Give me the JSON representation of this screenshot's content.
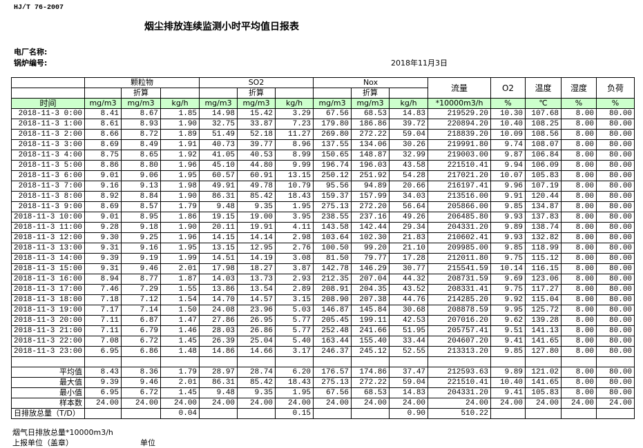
{
  "header": {
    "standard": "HJ/T  76-2007",
    "title": "烟尘排放连续监测小时平均值日报表",
    "plant_label": "电厂名称:",
    "boiler_label": "锅炉编号:",
    "date": "2018年11月3日"
  },
  "colors": {
    "header_green": "#ccffcc"
  },
  "table": {
    "groups": {
      "particulate": "颗粒物",
      "so2": "SO2",
      "nox": "Nox",
      "flow": "流量",
      "o2": "O2",
      "temp": "温度",
      "humidity": "湿度",
      "load": "负荷"
    },
    "converted": "折算",
    "time_label": "时间",
    "units": [
      "mg/m3",
      "mg/m3",
      "kg/h",
      "mg/m3",
      "mg/m3",
      "kg/h",
      "mg/m3",
      "mg/m3",
      "kg/h",
      "*10000m3/h",
      "%",
      "℃",
      "%",
      "%"
    ],
    "rows": [
      [
        "2018-11-3 0:00",
        "8.41",
        "8.67",
        "1.85",
        "14.98",
        "15.42",
        "3.29",
        "67.56",
        "68.53",
        "14.83",
        "219529.20",
        "10.30",
        "107.68",
        "8.00",
        "80.00"
      ],
      [
        "2018-11-3 1:00",
        "8.61",
        "8.93",
        "1.90",
        "32.75",
        "33.87",
        "7.23",
        "179.80",
        "186.86",
        "39.72",
        "220894.20",
        "10.40",
        "108.25",
        "8.00",
        "80.00"
      ],
      [
        "2018-11-3 2:00",
        "8.66",
        "8.72",
        "1.89",
        "51.49",
        "52.18",
        "11.27",
        "269.80",
        "272.22",
        "59.04",
        "218839.20",
        "10.09",
        "108.56",
        "8.00",
        "80.00"
      ],
      [
        "2018-11-3 3:00",
        "8.69",
        "8.49",
        "1.91",
        "40.73",
        "39.77",
        "8.96",
        "137.55",
        "134.06",
        "30.26",
        "219991.80",
        "9.74",
        "108.07",
        "8.00",
        "80.00"
      ],
      [
        "2018-11-3 4:00",
        "8.75",
        "8.65",
        "1.92",
        "41.05",
        "40.53",
        "8.99",
        "150.65",
        "148.87",
        "32.99",
        "219003.00",
        "9.87",
        "106.84",
        "8.00",
        "80.00"
      ],
      [
        "2018-11-3 5:00",
        "8.86",
        "8.80",
        "1.96",
        "45.10",
        "44.80",
        "9.99",
        "196.74",
        "196.03",
        "43.58",
        "221510.41",
        "9.94",
        "106.09",
        "8.00",
        "80.00"
      ],
      [
        "2018-11-3 6:00",
        "9.01",
        "9.06",
        "1.95",
        "60.57",
        "60.91",
        "13.15",
        "250.12",
        "251.92",
        "54.28",
        "217021.20",
        "10.07",
        "105.83",
        "8.00",
        "80.00"
      ],
      [
        "2018-11-3 7:00",
        "9.16",
        "9.13",
        "1.98",
        "49.91",
        "49.78",
        "10.79",
        "95.56",
        "94.89",
        "20.66",
        "216197.41",
        "9.96",
        "107.19",
        "8.00",
        "80.00"
      ],
      [
        "2018-11-3 8:00",
        "8.92",
        "8.84",
        "1.90",
        "86.31",
        "85.42",
        "18.43",
        "159.37",
        "157.99",
        "34.03",
        "213516.00",
        "9.91",
        "120.44",
        "8.00",
        "80.00"
      ],
      [
        "2018-11-3 9:00",
        "8.69",
        "8.57",
        "1.79",
        "9.48",
        "9.35",
        "1.95",
        "275.13",
        "272.20",
        "56.64",
        "205866.00",
        "9.85",
        "134.87",
        "8.00",
        "80.00"
      ],
      [
        "2018-11-3 10:00",
        "9.01",
        "8.95",
        "1.86",
        "19.15",
        "19.00",
        "3.95",
        "238.55",
        "237.16",
        "49.26",
        "206485.80",
        "9.93",
        "137.83",
        "8.00",
        "80.00"
      ],
      [
        "2018-11-3 11:00",
        "9.28",
        "9.18",
        "1.90",
        "20.11",
        "19.91",
        "4.11",
        "143.58",
        "142.44",
        "29.34",
        "204331.20",
        "9.89",
        "138.74",
        "8.00",
        "80.00"
      ],
      [
        "2018-11-3 12:00",
        "9.30",
        "9.25",
        "1.96",
        "14.15",
        "14.14",
        "2.98",
        "103.64",
        "102.30",
        "21.83",
        "210602.41",
        "9.93",
        "132.82",
        "8.00",
        "80.00"
      ],
      [
        "2018-11-3 13:00",
        "9.31",
        "9.16",
        "1.95",
        "13.15",
        "12.95",
        "2.76",
        "100.50",
        "99.20",
        "21.10",
        "209985.00",
        "9.85",
        "118.99",
        "8.00",
        "80.00"
      ],
      [
        "2018-11-3 14:00",
        "9.39",
        "9.19",
        "1.99",
        "14.51",
        "14.19",
        "3.08",
        "81.50",
        "79.77",
        "17.28",
        "212011.80",
        "9.75",
        "115.12",
        "8.00",
        "80.00"
      ],
      [
        "2018-11-3 15:00",
        "9.31",
        "9.46",
        "2.01",
        "17.98",
        "18.27",
        "3.87",
        "142.78",
        "146.29",
        "30.77",
        "215541.59",
        "10.14",
        "116.15",
        "8.00",
        "80.00"
      ],
      [
        "2018-11-3 16:00",
        "8.94",
        "8.77",
        "1.87",
        "14.03",
        "13.73",
        "2.93",
        "212.35",
        "207.04",
        "44.32",
        "208731.59",
        "9.69",
        "123.06",
        "8.00",
        "80.00"
      ],
      [
        "2018-11-3 17:00",
        "7.46",
        "7.29",
        "1.55",
        "13.86",
        "13.54",
        "2.89",
        "208.91",
        "204.35",
        "43.52",
        "208331.41",
        "9.75",
        "117.27",
        "8.00",
        "80.00"
      ],
      [
        "2018-11-3 18:00",
        "7.18",
        "7.12",
        "1.54",
        "14.70",
        "14.57",
        "3.15",
        "208.90",
        "207.38",
        "44.76",
        "214285.20",
        "9.92",
        "115.04",
        "8.00",
        "80.00"
      ],
      [
        "2018-11-3 19:00",
        "7.17",
        "7.14",
        "1.50",
        "24.08",
        "23.96",
        "5.03",
        "146.87",
        "145.84",
        "30.68",
        "208878.59",
        "9.95",
        "125.72",
        "8.00",
        "80.00"
      ],
      [
        "2018-11-3 20:00",
        "7.11",
        "6.87",
        "1.47",
        "27.86",
        "26.95",
        "5.77",
        "205.45",
        "199.11",
        "42.53",
        "207016.20",
        "9.62",
        "139.28",
        "8.00",
        "80.00"
      ],
      [
        "2018-11-3 21:00",
        "7.11",
        "6.79",
        "1.46",
        "28.03",
        "26.86",
        "5.77",
        "252.48",
        "241.66",
        "51.95",
        "205757.41",
        "9.51",
        "141.13",
        "8.00",
        "80.00"
      ],
      [
        "2018-11-3 22:00",
        "7.08",
        "6.72",
        "1.45",
        "26.39",
        "25.04",
        "5.40",
        "163.44",
        "155.40",
        "33.44",
        "204607.20",
        "9.41",
        "141.65",
        "8.00",
        "80.00"
      ],
      [
        "2018-11-3 23:00",
        "6.95",
        "6.86",
        "1.48",
        "14.86",
        "14.66",
        "3.17",
        "246.37",
        "245.12",
        "52.55",
        "213313.20",
        "9.85",
        "127.80",
        "8.00",
        "80.00"
      ]
    ],
    "summary": [
      [
        "平均值",
        "8.43",
        "8.36",
        "1.79",
        "28.97",
        "28.74",
        "6.20",
        "176.57",
        "174.86",
        "37.47",
        "212593.63",
        "9.89",
        "121.02",
        "8.00",
        "80.00"
      ],
      [
        "最大值",
        "9.39",
        "9.46",
        "2.01",
        "86.31",
        "85.42",
        "18.43",
        "275.13",
        "272.22",
        "59.04",
        "221510.41",
        "10.40",
        "141.65",
        "8.00",
        "80.00"
      ],
      [
        "最小值",
        "6.95",
        "6.72",
        "1.45",
        "9.48",
        "9.35",
        "1.95",
        "67.56",
        "68.53",
        "14.83",
        "204331.20",
        "9.41",
        "105.83",
        "8.00",
        "80.00"
      ],
      [
        "样本数",
        "24.00",
        "24.00",
        "24.00",
        "24.00",
        "24.00",
        "24.00",
        "24.00",
        "24.00",
        "24.00",
        "24.00",
        "24.00",
        "24.00",
        "24.00",
        "24.00"
      ],
      [
        "日排放总量（T/D）",
        "",
        "",
        "0.04",
        "",
        "",
        "0.15",
        "",
        "",
        "0.90",
        "510.22",
        "",
        "",
        "",
        ""
      ]
    ]
  },
  "footer": {
    "flue_gas_total": "烟气日排放总量*10000m3/h",
    "reporting_unit": "上报单位（盖章）",
    "unit": "单位"
  }
}
